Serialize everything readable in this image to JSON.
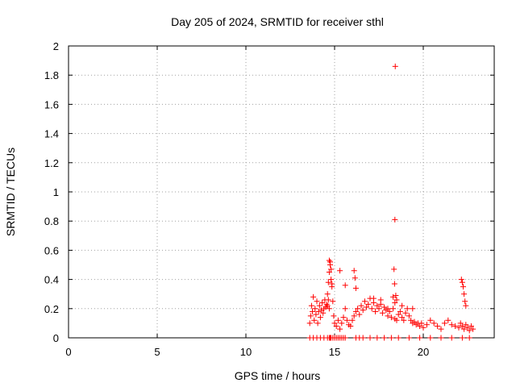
{
  "chart_data": {
    "type": "scatter",
    "title": "Day 205 of 2024, SRMTID for receiver sthl",
    "xlabel": "GPS time / hours",
    "ylabel": "SRMTID / TECUs",
    "xlim": [
      0,
      24
    ],
    "ylim": [
      0,
      2
    ],
    "x_ticks": [
      0,
      5,
      10,
      15,
      20
    ],
    "y_ticks": [
      0,
      0.2,
      0.4,
      0.6,
      0.8,
      1,
      1.2,
      1.4,
      1.6,
      1.8,
      2
    ],
    "grid": true,
    "marker": "+",
    "series": [
      {
        "name": "SRMTID",
        "color": "#ff0000",
        "x": [
          13.6,
          13.65,
          13.7,
          13.75,
          13.8,
          13.85,
          13.9,
          13.95,
          14.0,
          14.05,
          14.1,
          14.15,
          14.2,
          14.25,
          14.3,
          14.35,
          14.4,
          14.45,
          14.5,
          14.55,
          14.6,
          14.65,
          14.7,
          14.75,
          14.8,
          14.85,
          14.9,
          14.95,
          15.0,
          15.1,
          15.2,
          15.3,
          15.4,
          15.5,
          15.6,
          15.7,
          15.8,
          15.9,
          16.0,
          16.1,
          16.2,
          16.3,
          16.4,
          16.5,
          16.6,
          16.7,
          16.8,
          16.9,
          17.0,
          17.1,
          17.2,
          17.3,
          17.4,
          17.5,
          17.6,
          17.7,
          17.8,
          17.9,
          18.0,
          18.1,
          18.2,
          18.3,
          18.4,
          18.5,
          18.6,
          18.7,
          18.8,
          18.9,
          19.0,
          19.1,
          19.2,
          19.3,
          19.4,
          19.5,
          19.6,
          19.7,
          19.8,
          19.9,
          20.0,
          20.2,
          20.4,
          20.6,
          20.8,
          21.0,
          21.2,
          21.4,
          21.6,
          21.8,
          22.0,
          22.1,
          22.2,
          22.3,
          22.4,
          22.5,
          22.6,
          22.7,
          22.8,
          13.6,
          13.8,
          14.0,
          14.2,
          14.4,
          14.6,
          14.7,
          14.75,
          14.8,
          14.9,
          15.0,
          15.1,
          15.2,
          15.3,
          15.4,
          15.5,
          15.6,
          16.2,
          16.4,
          16.6,
          17.0,
          17.4,
          17.8,
          18.2,
          18.6,
          19.2,
          19.8,
          20.4,
          21.0,
          21.6,
          22.2,
          22.6,
          14.7,
          14.75,
          14.8,
          14.85,
          15.3,
          15.6,
          16.1,
          16.15,
          16.2,
          18.35,
          18.38,
          18.4,
          18.42,
          18.45,
          22.15,
          22.2,
          22.25,
          22.3,
          22.35,
          22.4,
          14.6,
          14.65,
          14.7,
          18.3,
          18.4,
          18.5,
          17.2,
          17.6,
          18.0,
          18.8,
          19.4
        ],
        "values": [
          0.1,
          0.15,
          0.22,
          0.18,
          0.28,
          0.12,
          0.2,
          0.16,
          0.25,
          0.1,
          0.18,
          0.22,
          0.14,
          0.19,
          0.24,
          0.17,
          0.2,
          0.26,
          0.21,
          0.23,
          0.3,
          0.38,
          0.45,
          0.52,
          0.4,
          0.35,
          0.25,
          0.15,
          0.1,
          0.08,
          0.12,
          0.06,
          0.1,
          0.14,
          0.2,
          0.12,
          0.09,
          0.08,
          0.12,
          0.15,
          0.18,
          0.2,
          0.16,
          0.22,
          0.19,
          0.25,
          0.21,
          0.23,
          0.27,
          0.2,
          0.24,
          0.18,
          0.22,
          0.2,
          0.26,
          0.17,
          0.21,
          0.19,
          0.15,
          0.18,
          0.14,
          0.2,
          0.13,
          0.12,
          0.16,
          0.18,
          0.14,
          0.12,
          0.17,
          0.2,
          0.15,
          0.12,
          0.1,
          0.11,
          0.09,
          0.1,
          0.08,
          0.1,
          0.07,
          0.09,
          0.12,
          0.1,
          0.08,
          0.06,
          0.1,
          0.12,
          0.09,
          0.08,
          0.07,
          0.1,
          0.08,
          0.06,
          0.09,
          0.07,
          0.05,
          0.08,
          0.06,
          0.0,
          0.0,
          0.0,
          0.0,
          0.0,
          0.0,
          0.0,
          0.0,
          0.0,
          0.0,
          0.0,
          0.0,
          0.0,
          0.0,
          0.0,
          0.0,
          0.0,
          0.0,
          0.0,
          0.0,
          0.0,
          0.0,
          0.0,
          0.0,
          0.0,
          0.0,
          0.0,
          0.0,
          0.0,
          0.0,
          0.0,
          0.0,
          0.53,
          0.5,
          0.47,
          0.37,
          0.46,
          0.36,
          0.46,
          0.41,
          0.34,
          0.47,
          0.37,
          0.81,
          1.86,
          0.29,
          0.4,
          0.38,
          0.35,
          0.3,
          0.25,
          0.22,
          0.22,
          0.26,
          0.2,
          0.28,
          0.24,
          0.26,
          0.27,
          0.23,
          0.2,
          0.22,
          0.2
        ]
      }
    ]
  }
}
